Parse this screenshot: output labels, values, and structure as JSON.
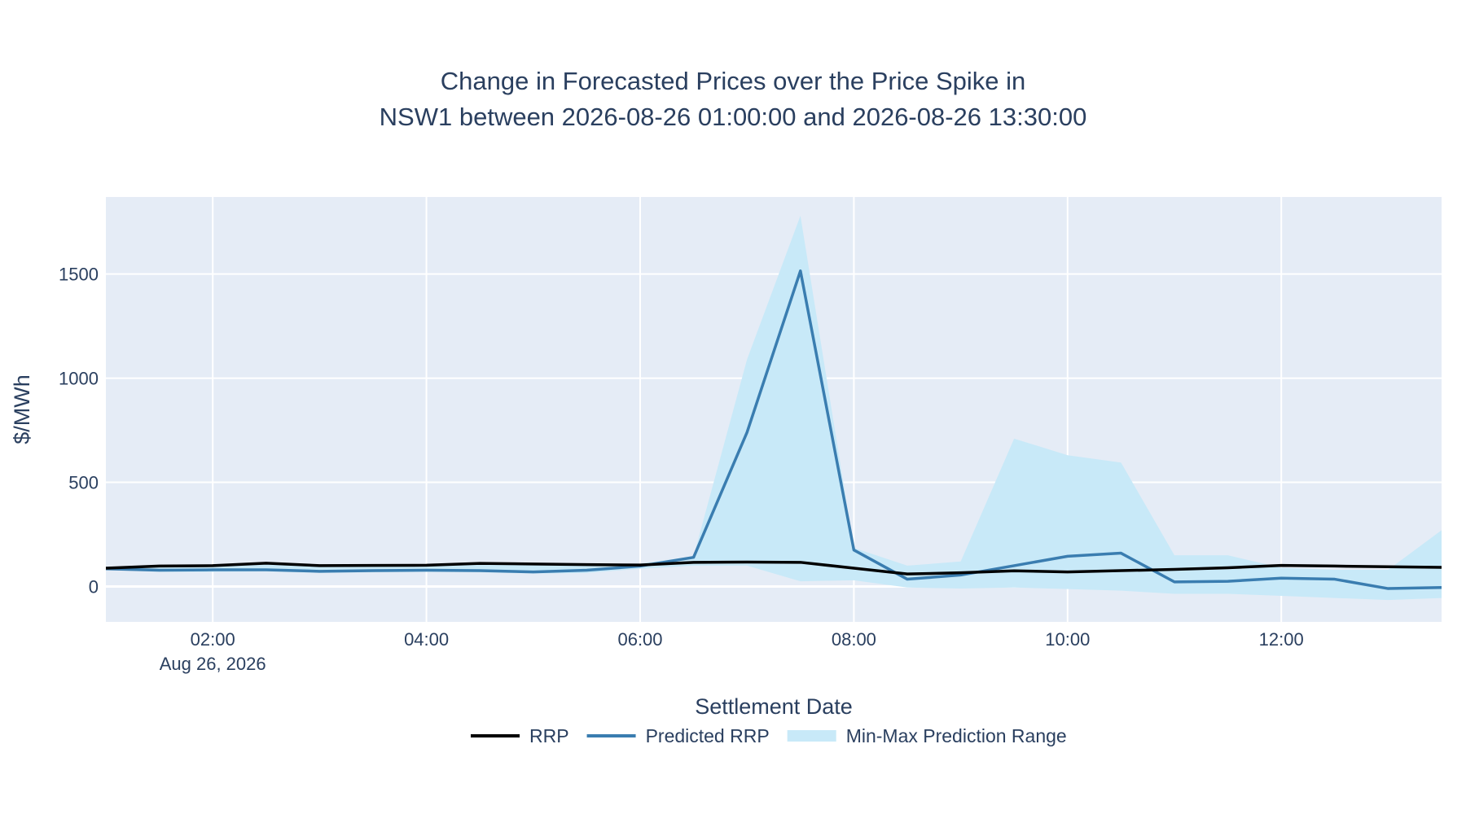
{
  "chart_data": {
    "type": "line",
    "title_line1": "Change in Forecasted Prices over the Price Spike in",
    "title_line2": "NSW1 between 2026-08-26 01:00:00 and 2026-08-26 13:30:00",
    "xlabel": "Settlement Date",
    "ylabel": "$/MWh",
    "xlim": [
      "2026-08-26 01:00",
      "2026-08-26 13:30"
    ],
    "ylim": [
      -170,
      1870
    ],
    "x_ticks": [
      {
        "value": "2026-08-26 02:00",
        "label": "02:00",
        "sublabel": "Aug 26, 2026"
      },
      {
        "value": "2026-08-26 04:00",
        "label": "04:00"
      },
      {
        "value": "2026-08-26 06:00",
        "label": "06:00"
      },
      {
        "value": "2026-08-26 08:00",
        "label": "08:00"
      },
      {
        "value": "2026-08-26 10:00",
        "label": "10:00"
      },
      {
        "value": "2026-08-26 12:00",
        "label": "12:00"
      }
    ],
    "y_ticks": [
      {
        "value": 0,
        "label": "0"
      },
      {
        "value": 500,
        "label": "500"
      },
      {
        "value": 1000,
        "label": "1000"
      },
      {
        "value": 1500,
        "label": "1500"
      }
    ],
    "grid": true,
    "legend_position": "bottom-center",
    "x": [
      "2026-08-26 01:00",
      "2026-08-26 01:30",
      "2026-08-26 02:00",
      "2026-08-26 02:30",
      "2026-08-26 03:00",
      "2026-08-26 03:30",
      "2026-08-26 04:00",
      "2026-08-26 04:30",
      "2026-08-26 05:00",
      "2026-08-26 05:30",
      "2026-08-26 06:00",
      "2026-08-26 06:30",
      "2026-08-26 07:00",
      "2026-08-26 07:30",
      "2026-08-26 08:00",
      "2026-08-26 08:30",
      "2026-08-26 09:00",
      "2026-08-26 09:30",
      "2026-08-26 10:00",
      "2026-08-26 10:30",
      "2026-08-26 11:00",
      "2026-08-26 11:30",
      "2026-08-26 12:00",
      "2026-08-26 12:30",
      "2026-08-26 13:00",
      "2026-08-26 13:30"
    ],
    "series": [
      {
        "name": "RRP",
        "kind": "line",
        "color": "#000000",
        "values": [
          88,
          98,
          100,
          112,
          100,
          101,
          102,
          111,
          108,
          105,
          103,
          116,
          117,
          116,
          88,
          60,
          66,
          75,
          70,
          76,
          82,
          90,
          101,
          98,
          95,
          92
        ]
      },
      {
        "name": "Predicted RRP",
        "kind": "line",
        "color": "#3a7db0",
        "values": [
          85,
          78,
          80,
          80,
          73,
          76,
          78,
          76,
          70,
          78,
          98,
          140,
          740,
          1515,
          175,
          35,
          55,
          100,
          145,
          160,
          22,
          25,
          40,
          35,
          -10,
          -5
        ]
      },
      {
        "name": "Min-Max Prediction Range",
        "kind": "band",
        "color": "#c8e9f8",
        "upper": [
          95,
          98,
          100,
          112,
          100,
          101,
          102,
          111,
          108,
          105,
          110,
          145,
          1090,
          1780,
          185,
          100,
          120,
          710,
          630,
          595,
          150,
          150,
          90,
          80,
          80,
          270
        ],
        "lower": [
          80,
          70,
          70,
          72,
          65,
          68,
          70,
          68,
          62,
          65,
          85,
          100,
          100,
          25,
          30,
          -5,
          -10,
          -5,
          -12,
          -20,
          -35,
          -35,
          -45,
          -55,
          -65,
          -55
        ]
      }
    ]
  }
}
